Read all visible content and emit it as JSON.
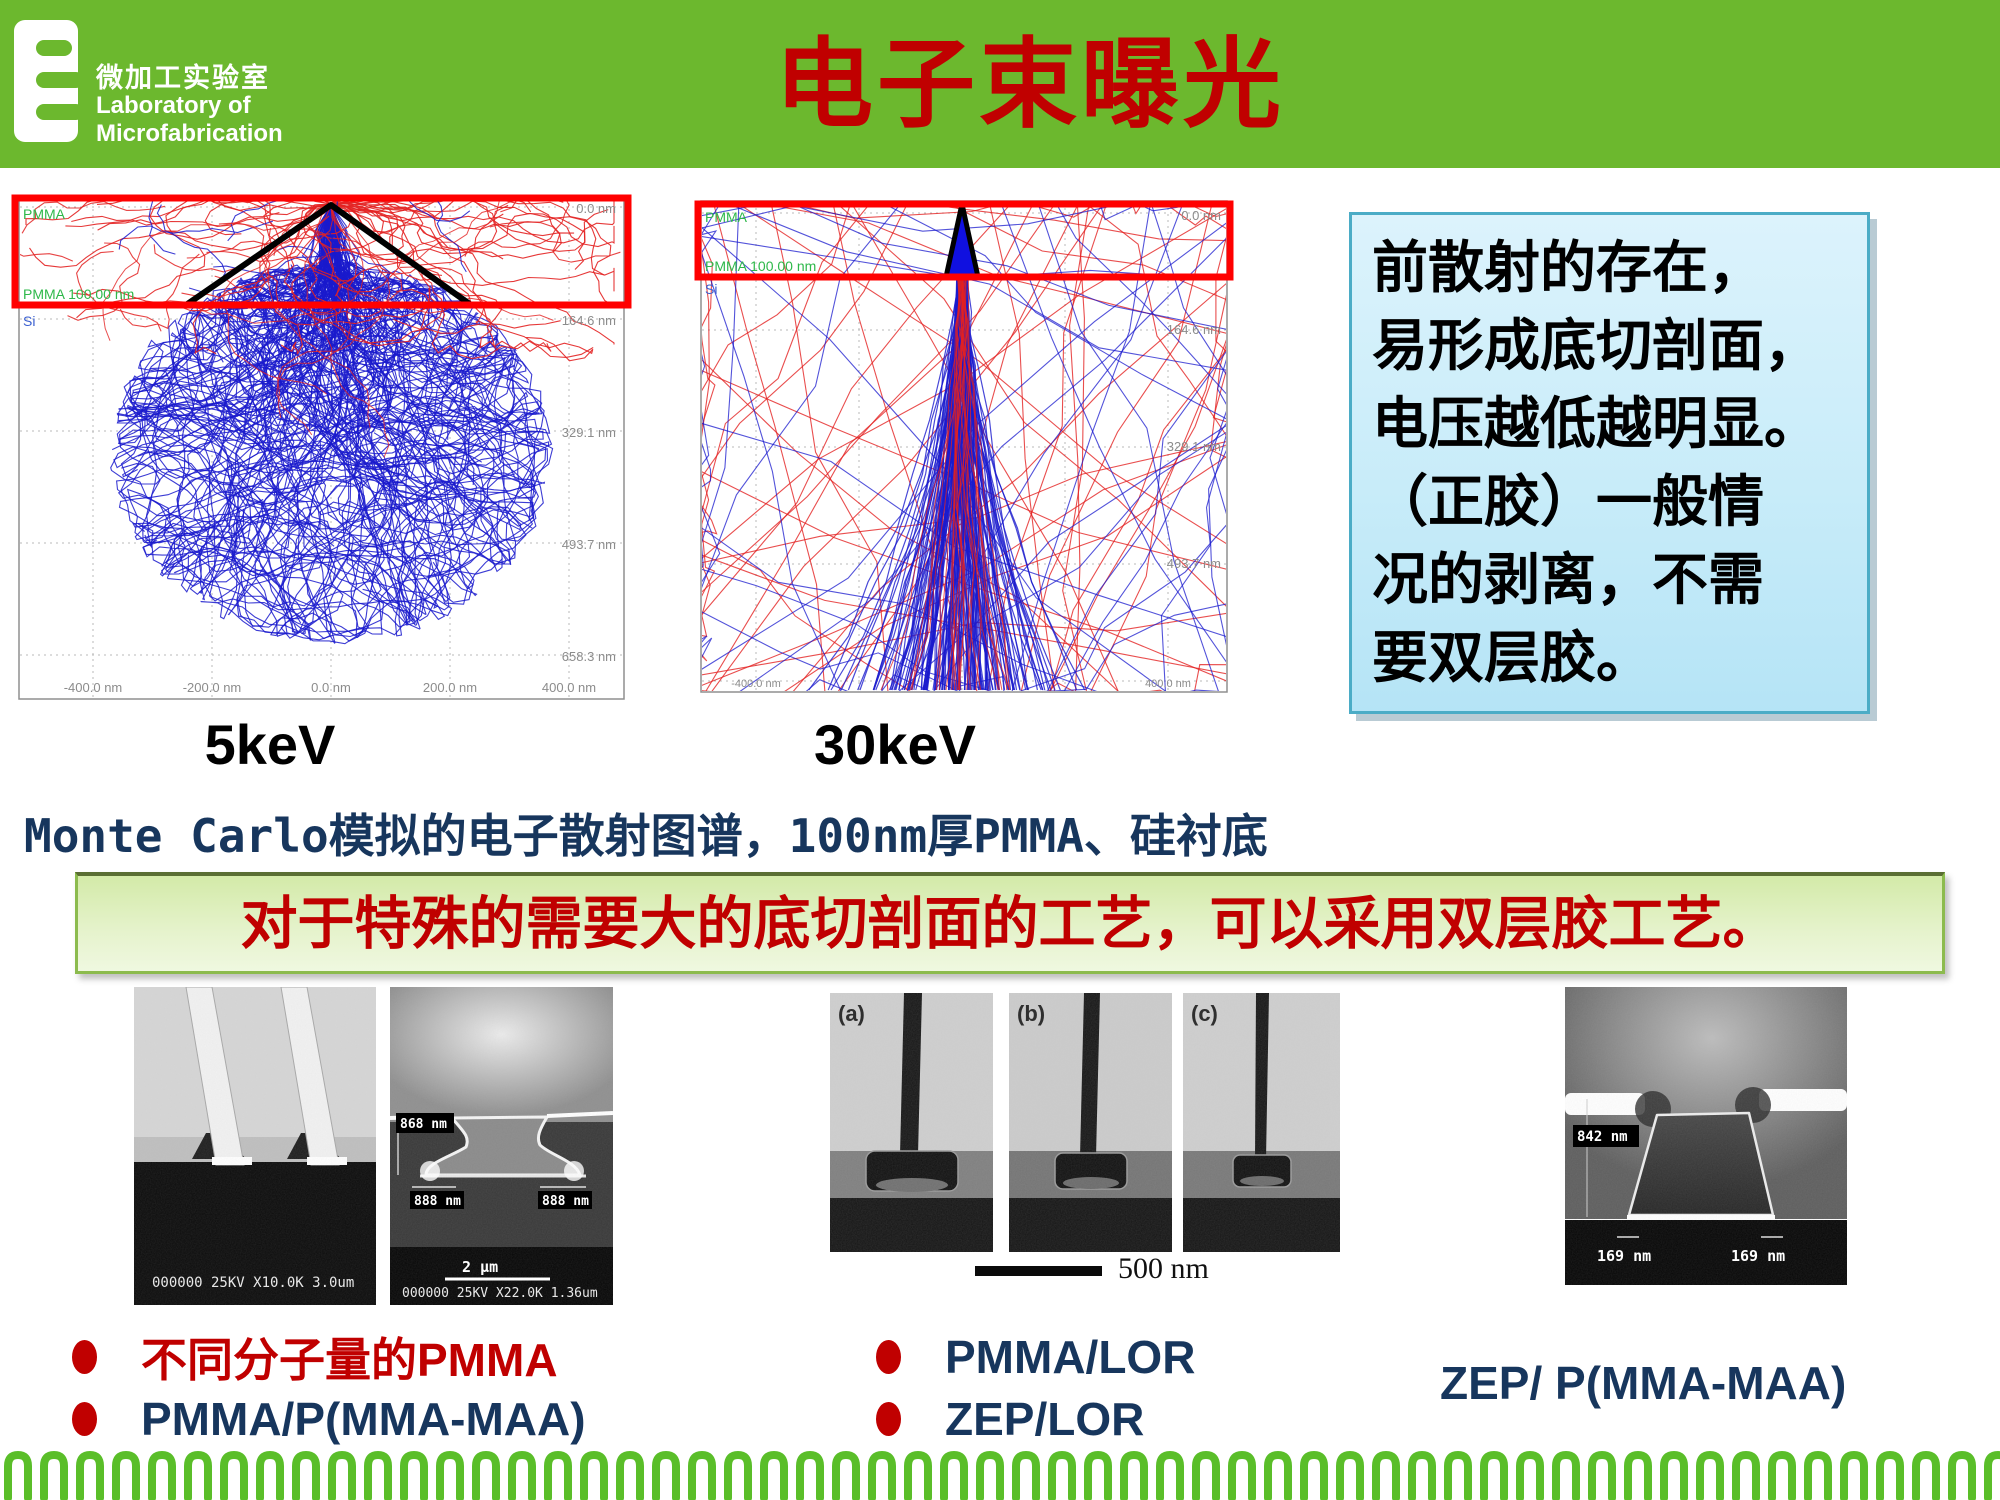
{
  "header": {
    "logo_cn": "微加工实验室",
    "logo_en_line1": "Laboratory of",
    "logo_en_line2": "Microfabrication",
    "title": "电子束曝光"
  },
  "plots": {
    "left": {
      "energy": "5keV",
      "pmma": "PMMA",
      "pmma_thickness": "PMMA 100.00 nm",
      "si": "Si",
      "depth_ticks": [
        "0.0 nm",
        "164.6 nm",
        "329.1 nm",
        "493.7 nm",
        "658.3 nm"
      ],
      "x_ticks": [
        "-400.0 nm",
        "-200.0 nm",
        "0.0 nm",
        "200.0 nm",
        "400.0 nm"
      ]
    },
    "right": {
      "energy": "30keV",
      "pmma": "PMMA",
      "pmma_thickness": "PMMA 100.00 nm",
      "si": "Si",
      "depth_ticks": [
        "0.0 nm",
        "164.6 nm",
        "329.1 nm",
        "493.7 nm"
      ],
      "x_left": "-400.0 nm",
      "x_right": "400.0 nm"
    }
  },
  "caption": "Monte Carlo模拟的电子散射图谱，100nm厚PMMA、硅衬底",
  "note_box": {
    "lines": [
      "前散射的存在，",
      "易形成底切剖面，",
      "电压越低越明显。",
      "（正胶）一般情",
      "况的剥离，不需",
      "要双层胶。"
    ]
  },
  "highlight": {
    "text": "对于特殊的需要大的底切剖面的工艺，可以采用双层胶工艺。"
  },
  "sem_a": {
    "caption": "000000 25KV X10.0K  3.0um"
  },
  "sem_b": {
    "label_height": "868 nm",
    "label_left": "888 nm",
    "label_right": "888 nm",
    "scale": "2 μm",
    "caption": "000000 25KV X22.0K 1.36um"
  },
  "sem_c": {
    "label_a": "(a)",
    "label_b": "(b)",
    "label_c": "(c)",
    "scale": "500 nm"
  },
  "sem_d": {
    "height": "842 nm",
    "left": "169 nm",
    "right": "169 nm"
  },
  "bullets": {
    "item1": "不同分子量的PMMA",
    "item2": "PMMA/P(MMA-MAA)",
    "item3": "PMMA/LOR",
    "item4": "ZEP/LOR",
    "item5": "ZEP/ P(MMA-MAA)"
  },
  "colors": {
    "banner_green": "#6cb82e",
    "title_red": "#c00000",
    "navy": "#17365d",
    "trajectory_blue": "#1a1acd",
    "trajectory_red": "#e32222"
  }
}
